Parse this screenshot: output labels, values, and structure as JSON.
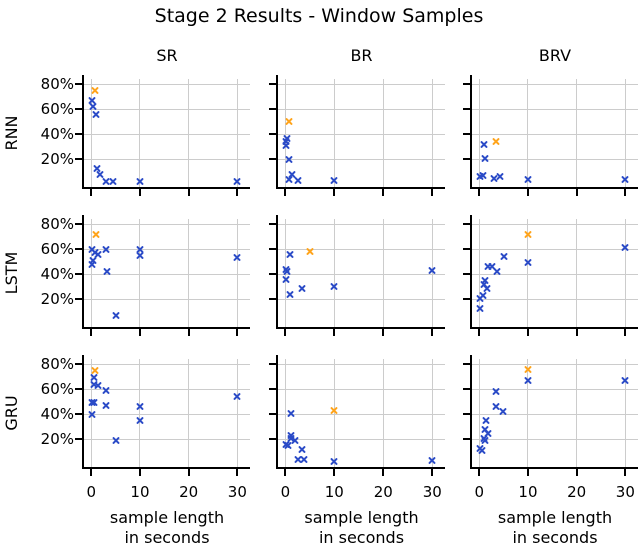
{
  "title": "Stage 2 Results - Window Samples",
  "columns": [
    "SR",
    "BR",
    "BRV"
  ],
  "rows": [
    "RNN",
    "LSTM",
    "GRU"
  ],
  "x_axis": {
    "tick_labels": [
      "0",
      "10",
      "20",
      "30"
    ],
    "tick_values": [
      0,
      10,
      20,
      30
    ],
    "label_line1": "sample length",
    "label_line2": "in seconds"
  },
  "y_axis": {
    "tick_labels": [
      "80%",
      "60%",
      "40%",
      "20%"
    ],
    "tick_values": [
      80,
      60,
      40,
      20
    ]
  },
  "colors": {
    "blue": "#2b4bc7",
    "orange": "#ffa41b",
    "grid": "#cccccc",
    "axis": "#000000"
  },
  "chart_data": {
    "type": "scatter",
    "marker": "x",
    "grid": true,
    "xlim": [
      -1.5,
      32.6
    ],
    "ylim": [
      -2,
      84
    ],
    "x_unit": "seconds",
    "y_unit": "percent",
    "subplots": [
      {
        "row": "RNN",
        "col": "SR",
        "series": [
          {
            "name": "blue",
            "points": [
              [
                0.1,
                67
              ],
              [
                0.3,
                62
              ],
              [
                1,
                56
              ],
              [
                1.2,
                13
              ],
              [
                1.7,
                8
              ],
              [
                3,
                2
              ],
              [
                4.5,
                2
              ],
              [
                10,
                2
              ],
              [
                30,
                2
              ]
            ]
          },
          {
            "name": "orange",
            "points": [
              [
                0.8,
                75
              ]
            ]
          }
        ]
      },
      {
        "row": "RNN",
        "col": "BR",
        "series": [
          {
            "name": "blue",
            "points": [
              [
                0.3,
                37
              ],
              [
                0.1,
                34
              ],
              [
                0.2,
                31
              ],
              [
                0.7,
                20
              ],
              [
                1.4,
                8
              ],
              [
                0.7,
                4
              ],
              [
                2.5,
                3
              ],
              [
                10,
                3
              ]
            ]
          },
          {
            "name": "orange",
            "points": [
              [
                0.7,
                50
              ]
            ]
          }
        ]
      },
      {
        "row": "RNN",
        "col": "BRV",
        "series": [
          {
            "name": "blue",
            "points": [
              [
                1,
                32
              ],
              [
                1.1,
                21
              ],
              [
                0.1,
                6
              ],
              [
                0.8,
                7
              ],
              [
                3,
                5
              ],
              [
                4.3,
                6
              ],
              [
                10,
                4
              ],
              [
                30,
                4
              ]
            ]
          },
          {
            "name": "orange",
            "points": [
              [
                3.4,
                34
              ]
            ]
          }
        ]
      },
      {
        "row": "LSTM",
        "col": "SR",
        "series": [
          {
            "name": "blue",
            "points": [
              [
                0.1,
                60
              ],
              [
                0.8,
                57
              ],
              [
                1.3,
                56
              ],
              [
                3,
                60
              ],
              [
                0.3,
                51
              ],
              [
                0.1,
                48
              ],
              [
                3.3,
                42
              ],
              [
                10,
                60
              ],
              [
                10,
                55
              ],
              [
                30,
                53
              ],
              [
                5,
                7
              ]
            ]
          },
          {
            "name": "orange",
            "points": [
              [
                1,
                72
              ]
            ]
          }
        ]
      },
      {
        "row": "LSTM",
        "col": "BR",
        "series": [
          {
            "name": "blue",
            "points": [
              [
                0.9,
                56
              ],
              [
                0.1,
                44
              ],
              [
                0.3,
                42
              ],
              [
                0.2,
                36
              ],
              [
                0.9,
                24
              ],
              [
                3.3,
                29
              ],
              [
                10,
                30
              ],
              [
                30,
                43
              ]
            ]
          },
          {
            "name": "orange",
            "points": [
              [
                5,
                58
              ]
            ]
          }
        ]
      },
      {
        "row": "LSTM",
        "col": "BRV",
        "series": [
          {
            "name": "blue",
            "points": [
              [
                30,
                61
              ],
              [
                5,
                54
              ],
              [
                10,
                49
              ],
              [
                1.7,
                46
              ],
              [
                2.7,
                46
              ],
              [
                3.6,
                42
              ],
              [
                1.1,
                35
              ],
              [
                1,
                32
              ],
              [
                1.5,
                29
              ],
              [
                0.7,
                23
              ],
              [
                0.2,
                21
              ],
              [
                0.2,
                13
              ]
            ]
          },
          {
            "name": "orange",
            "points": [
              [
                10,
                72
              ]
            ]
          }
        ]
      },
      {
        "row": "GRU",
        "col": "SR",
        "series": [
          {
            "name": "blue",
            "points": [
              [
                0.6,
                69
              ],
              [
                0.6,
                64
              ],
              [
                1.3,
                63
              ],
              [
                3,
                59
              ],
              [
                0.1,
                49
              ],
              [
                0.5,
                49
              ],
              [
                3,
                47
              ],
              [
                0.1,
                40
              ],
              [
                10,
                46
              ],
              [
                10,
                35
              ],
              [
                5,
                19
              ],
              [
                30,
                54
              ]
            ]
          },
          {
            "name": "orange",
            "points": [
              [
                0.8,
                75
              ]
            ]
          }
        ]
      },
      {
        "row": "GRU",
        "col": "BR",
        "series": [
          {
            "name": "blue",
            "points": [
              [
                1.1,
                41
              ],
              [
                1.2,
                23
              ],
              [
                1.1,
                21
              ],
              [
                1.9,
                19
              ],
              [
                0.1,
                16
              ],
              [
                0.5,
                15
              ],
              [
                3.4,
                12
              ],
              [
                2.5,
                4
              ],
              [
                3.8,
                4
              ],
              [
                10,
                2
              ],
              [
                30,
                3
              ]
            ]
          },
          {
            "name": "orange",
            "points": [
              [
                10,
                43
              ]
            ]
          }
        ]
      },
      {
        "row": "GRU",
        "col": "BRV",
        "series": [
          {
            "name": "blue",
            "points": [
              [
                10,
                67
              ],
              [
                30,
                67
              ],
              [
                3.4,
                58
              ],
              [
                3.4,
                46
              ],
              [
                4.9,
                42
              ],
              [
                1.3,
                35
              ],
              [
                1.1,
                28
              ],
              [
                1.7,
                25
              ],
              [
                0.9,
                21
              ],
              [
                1.1,
                19
              ],
              [
                0.2,
                13
              ],
              [
                0.5,
                11
              ]
            ]
          },
          {
            "name": "orange",
            "points": [
              [
                10,
                76
              ]
            ]
          }
        ]
      }
    ]
  }
}
